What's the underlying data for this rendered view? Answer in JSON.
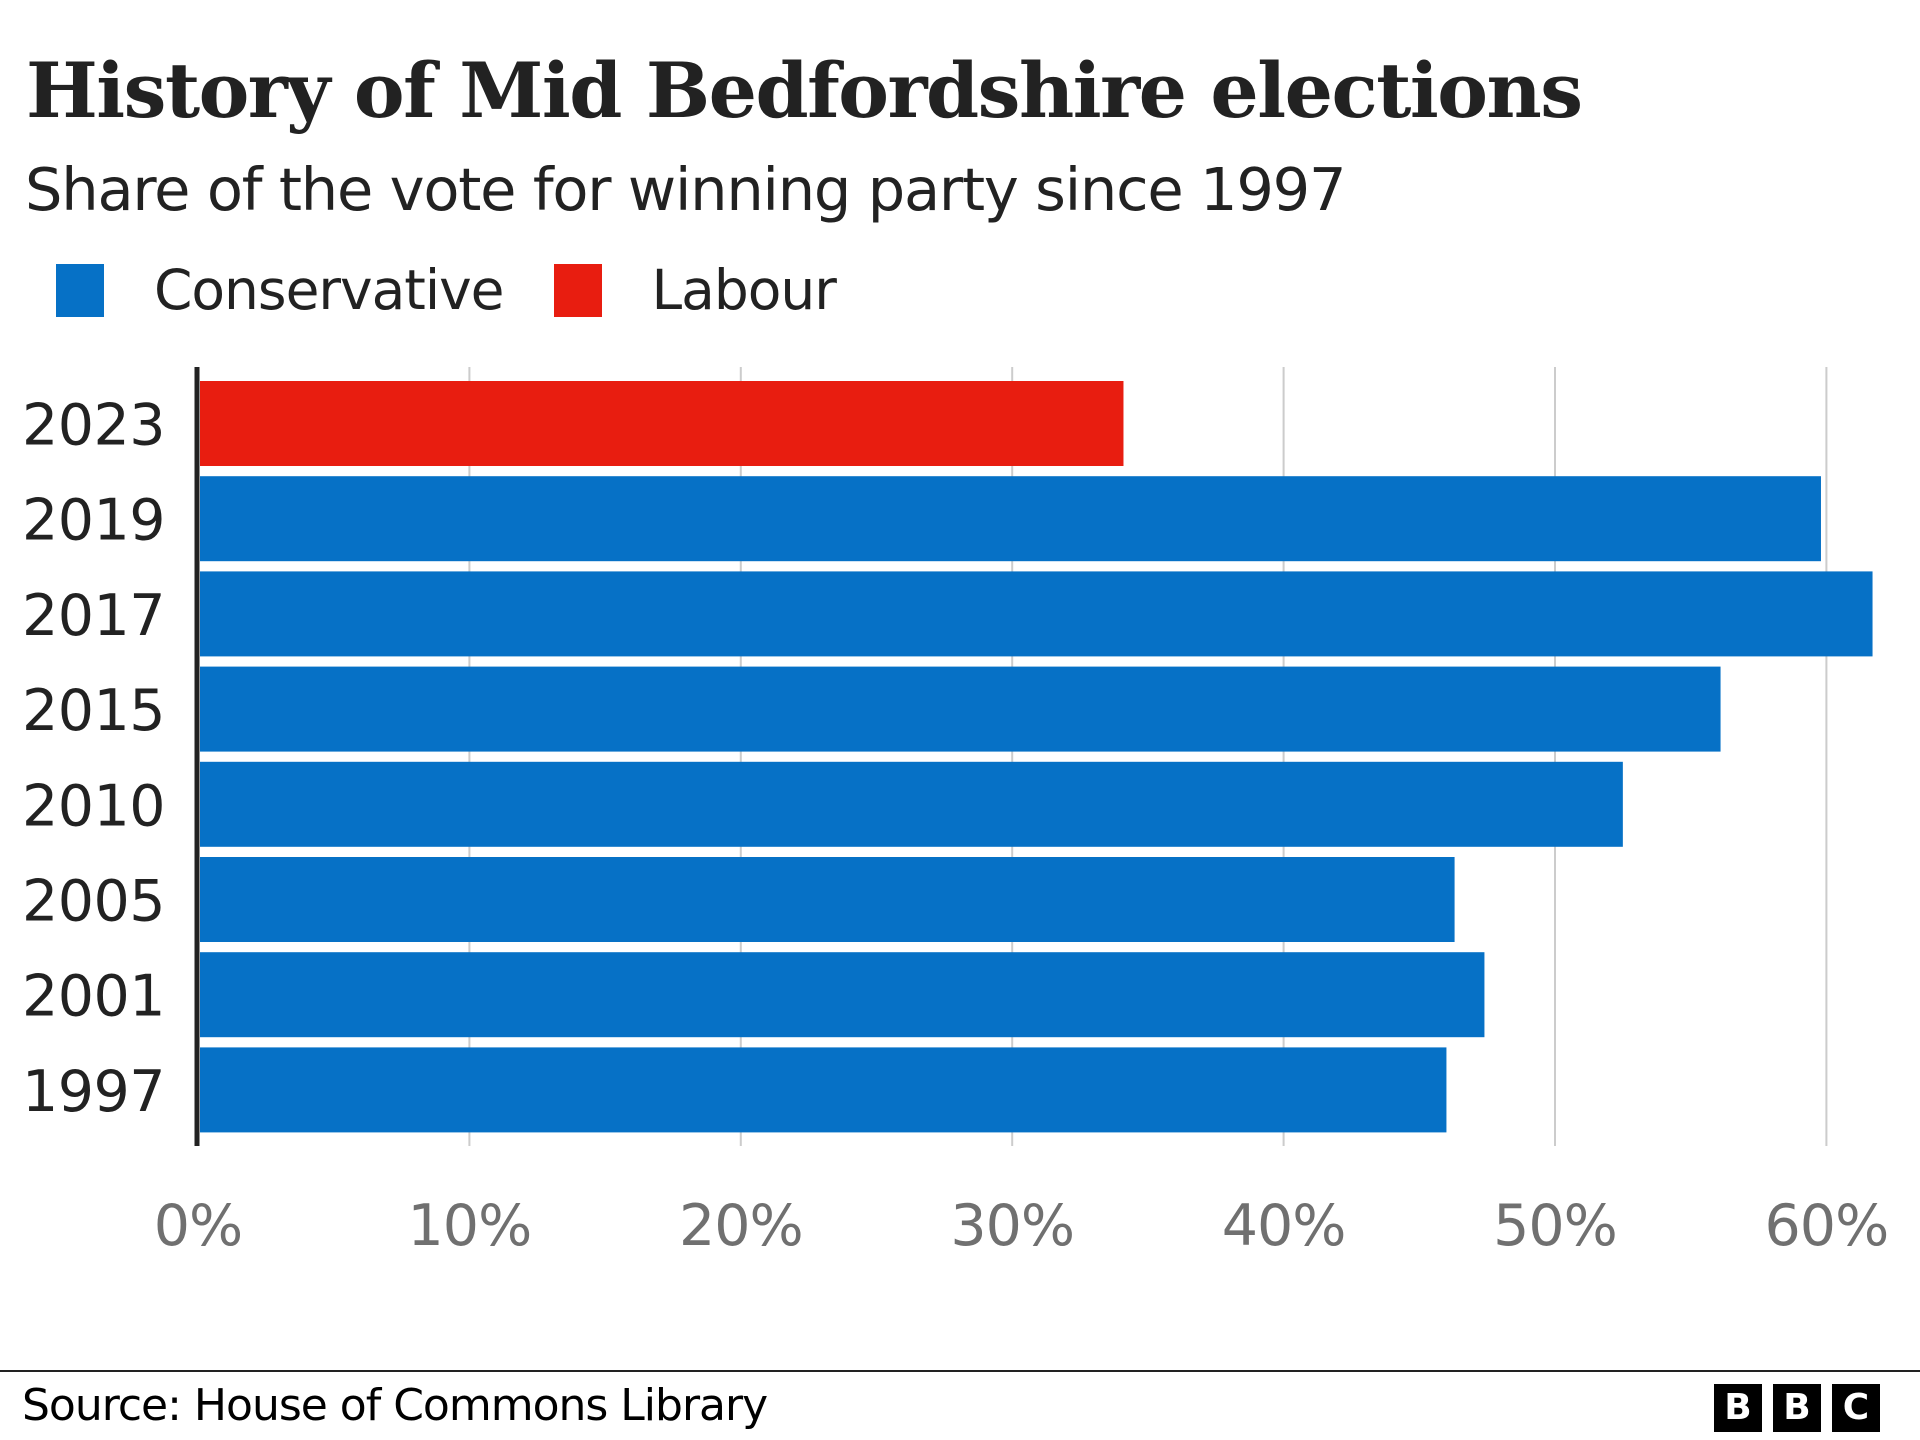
{
  "header": {
    "title": "History of Mid Bedfordshire elections",
    "subtitle": "Share of the vote for winning party since 1997"
  },
  "legend": [
    {
      "label": "Conservative",
      "color": "#0671c6"
    },
    {
      "label": "Labour",
      "color": "#e81d10"
    }
  ],
  "chart_data": {
    "type": "bar",
    "orientation": "horizontal",
    "title": "History of Mid Bedfordshire elections",
    "subtitle": "Share of the vote for winning party since 1997",
    "xlabel": "",
    "ylabel": "",
    "categories": [
      "2023",
      "2019",
      "2017",
      "2015",
      "2010",
      "2005",
      "2001",
      "1997"
    ],
    "values": [
      34.1,
      59.8,
      61.7,
      56.1,
      52.5,
      46.3,
      47.4,
      46.0
    ],
    "parties": [
      "Labour",
      "Conservative",
      "Conservative",
      "Conservative",
      "Conservative",
      "Conservative",
      "Conservative",
      "Conservative"
    ],
    "party_colors": {
      "Conservative": "#0671c6",
      "Labour": "#e81d10"
    },
    "xlim": [
      0,
      62
    ],
    "x_ticks": [
      0,
      10,
      20,
      30,
      40,
      50,
      60
    ],
    "x_tick_labels": [
      "0%",
      "10%",
      "20%",
      "30%",
      "40%",
      "50%",
      "60%"
    ],
    "grid": "vertical",
    "legend_position": "top-left",
    "unit": "%"
  },
  "footer": {
    "source": "Source: House of Commons Library",
    "logo_letters": [
      "B",
      "B",
      "C"
    ]
  }
}
